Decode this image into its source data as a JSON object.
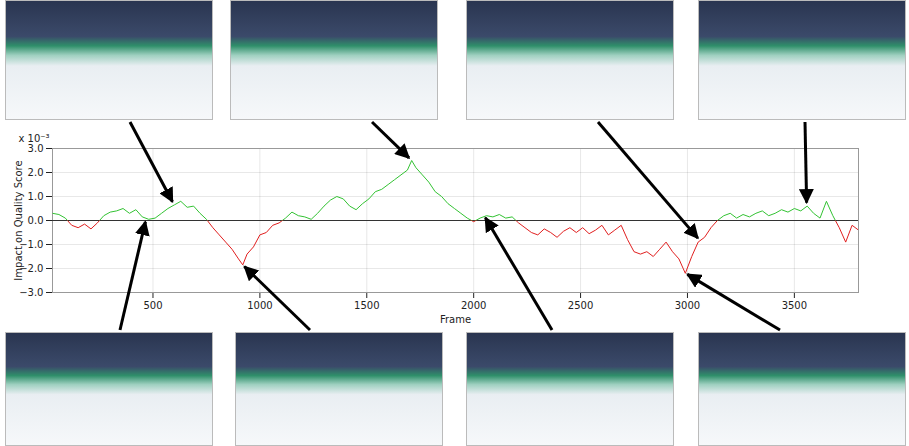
{
  "chart_data": {
    "type": "line",
    "x_label": "Frame",
    "y_label": "Impact on Quality Score",
    "y_multiplier": "x 10⁻³",
    "xlim": [
      30,
      3800
    ],
    "xticks": [
      500,
      1000,
      1500,
      2000,
      2500,
      3000,
      3500
    ],
    "ylim": [
      -3,
      3
    ],
    "yticks": [
      -3,
      -2,
      -1,
      0,
      1,
      2,
      3
    ],
    "grid": true,
    "colors": [
      "#33c233",
      "#e01f1f"
    ],
    "x": [
      30,
      60,
      90,
      120,
      150,
      180,
      210,
      240,
      270,
      300,
      330,
      360,
      390,
      420,
      450,
      480,
      510,
      540,
      570,
      600,
      630,
      660,
      690,
      720,
      750,
      780,
      810,
      840,
      870,
      900,
      920,
      940,
      970,
      1000,
      1030,
      1060,
      1090,
      1120,
      1150,
      1180,
      1210,
      1240,
      1270,
      1300,
      1330,
      1360,
      1390,
      1420,
      1450,
      1480,
      1510,
      1540,
      1570,
      1600,
      1630,
      1660,
      1690,
      1710,
      1730,
      1760,
      1790,
      1820,
      1850,
      1880,
      1910,
      1940,
      1970,
      2000,
      2030,
      2060,
      2090,
      2120,
      2150,
      2180,
      2210,
      2240,
      2270,
      2300,
      2330,
      2360,
      2390,
      2420,
      2450,
      2480,
      2510,
      2540,
      2570,
      2600,
      2630,
      2660,
      2690,
      2720,
      2750,
      2780,
      2810,
      2840,
      2870,
      2900,
      2930,
      2960,
      2990,
      3020,
      3050,
      3080,
      3110,
      3140,
      3170,
      3200,
      3230,
      3260,
      3290,
      3320,
      3350,
      3380,
      3410,
      3440,
      3470,
      3500,
      3530,
      3560,
      3590,
      3620,
      3650,
      3680,
      3710,
      3740,
      3770,
      3800
    ],
    "values": [
      0.3,
      0.25,
      0.1,
      -0.2,
      -0.3,
      -0.15,
      -0.35,
      -0.1,
      0.2,
      0.35,
      0.4,
      0.5,
      0.3,
      0.45,
      0.15,
      0.05,
      0.1,
      0.3,
      0.5,
      0.65,
      0.8,
      0.55,
      0.6,
      0.3,
      0.05,
      -0.3,
      -0.6,
      -0.9,
      -1.2,
      -1.6,
      -1.85,
      -1.4,
      -1.1,
      -0.6,
      -0.5,
      -0.2,
      -0.1,
      0.1,
      0.35,
      0.2,
      0.15,
      0.05,
      0.3,
      0.6,
      0.85,
      1.0,
      0.9,
      0.6,
      0.45,
      0.7,
      0.9,
      1.2,
      1.3,
      1.5,
      1.7,
      1.9,
      2.1,
      2.5,
      2.2,
      1.9,
      1.6,
      1.2,
      1.0,
      0.7,
      0.5,
      0.3,
      0.1,
      -0.05,
      0.1,
      0.2,
      0.15,
      0.25,
      0.1,
      0.15,
      -0.1,
      -0.3,
      -0.5,
      -0.6,
      -0.35,
      -0.5,
      -0.7,
      -0.45,
      -0.3,
      -0.5,
      -0.3,
      -0.55,
      -0.4,
      -0.2,
      -0.6,
      -0.4,
      -0.2,
      -0.8,
      -1.3,
      -1.4,
      -1.3,
      -1.5,
      -1.2,
      -0.9,
      -1.3,
      -1.6,
      -2.2,
      -1.5,
      -0.9,
      -0.7,
      -0.3,
      0.0,
      0.2,
      0.3,
      0.1,
      0.25,
      0.15,
      0.3,
      0.4,
      0.2,
      0.3,
      0.45,
      0.35,
      0.5,
      0.4,
      0.6,
      0.3,
      0.1,
      0.8,
      0.2,
      -0.3,
      -0.9,
      -0.2,
      -0.4
    ],
    "annotations": [
      {
        "frame": 600,
        "value": 0.65,
        "position": "top"
      },
      {
        "frame": 1710,
        "value": 2.5,
        "position": "top"
      },
      {
        "frame": 3060,
        "value": -0.85,
        "position": "top"
      },
      {
        "frame": 3560,
        "value": 0.6,
        "position": "top"
      },
      {
        "frame": 470,
        "value": 0.05,
        "position": "bottom"
      },
      {
        "frame": 920,
        "value": -1.85,
        "position": "bottom"
      },
      {
        "frame": 2050,
        "value": 0.2,
        "position": "bottom"
      },
      {
        "frame": 2990,
        "value": -2.2,
        "position": "bottom"
      }
    ]
  }
}
